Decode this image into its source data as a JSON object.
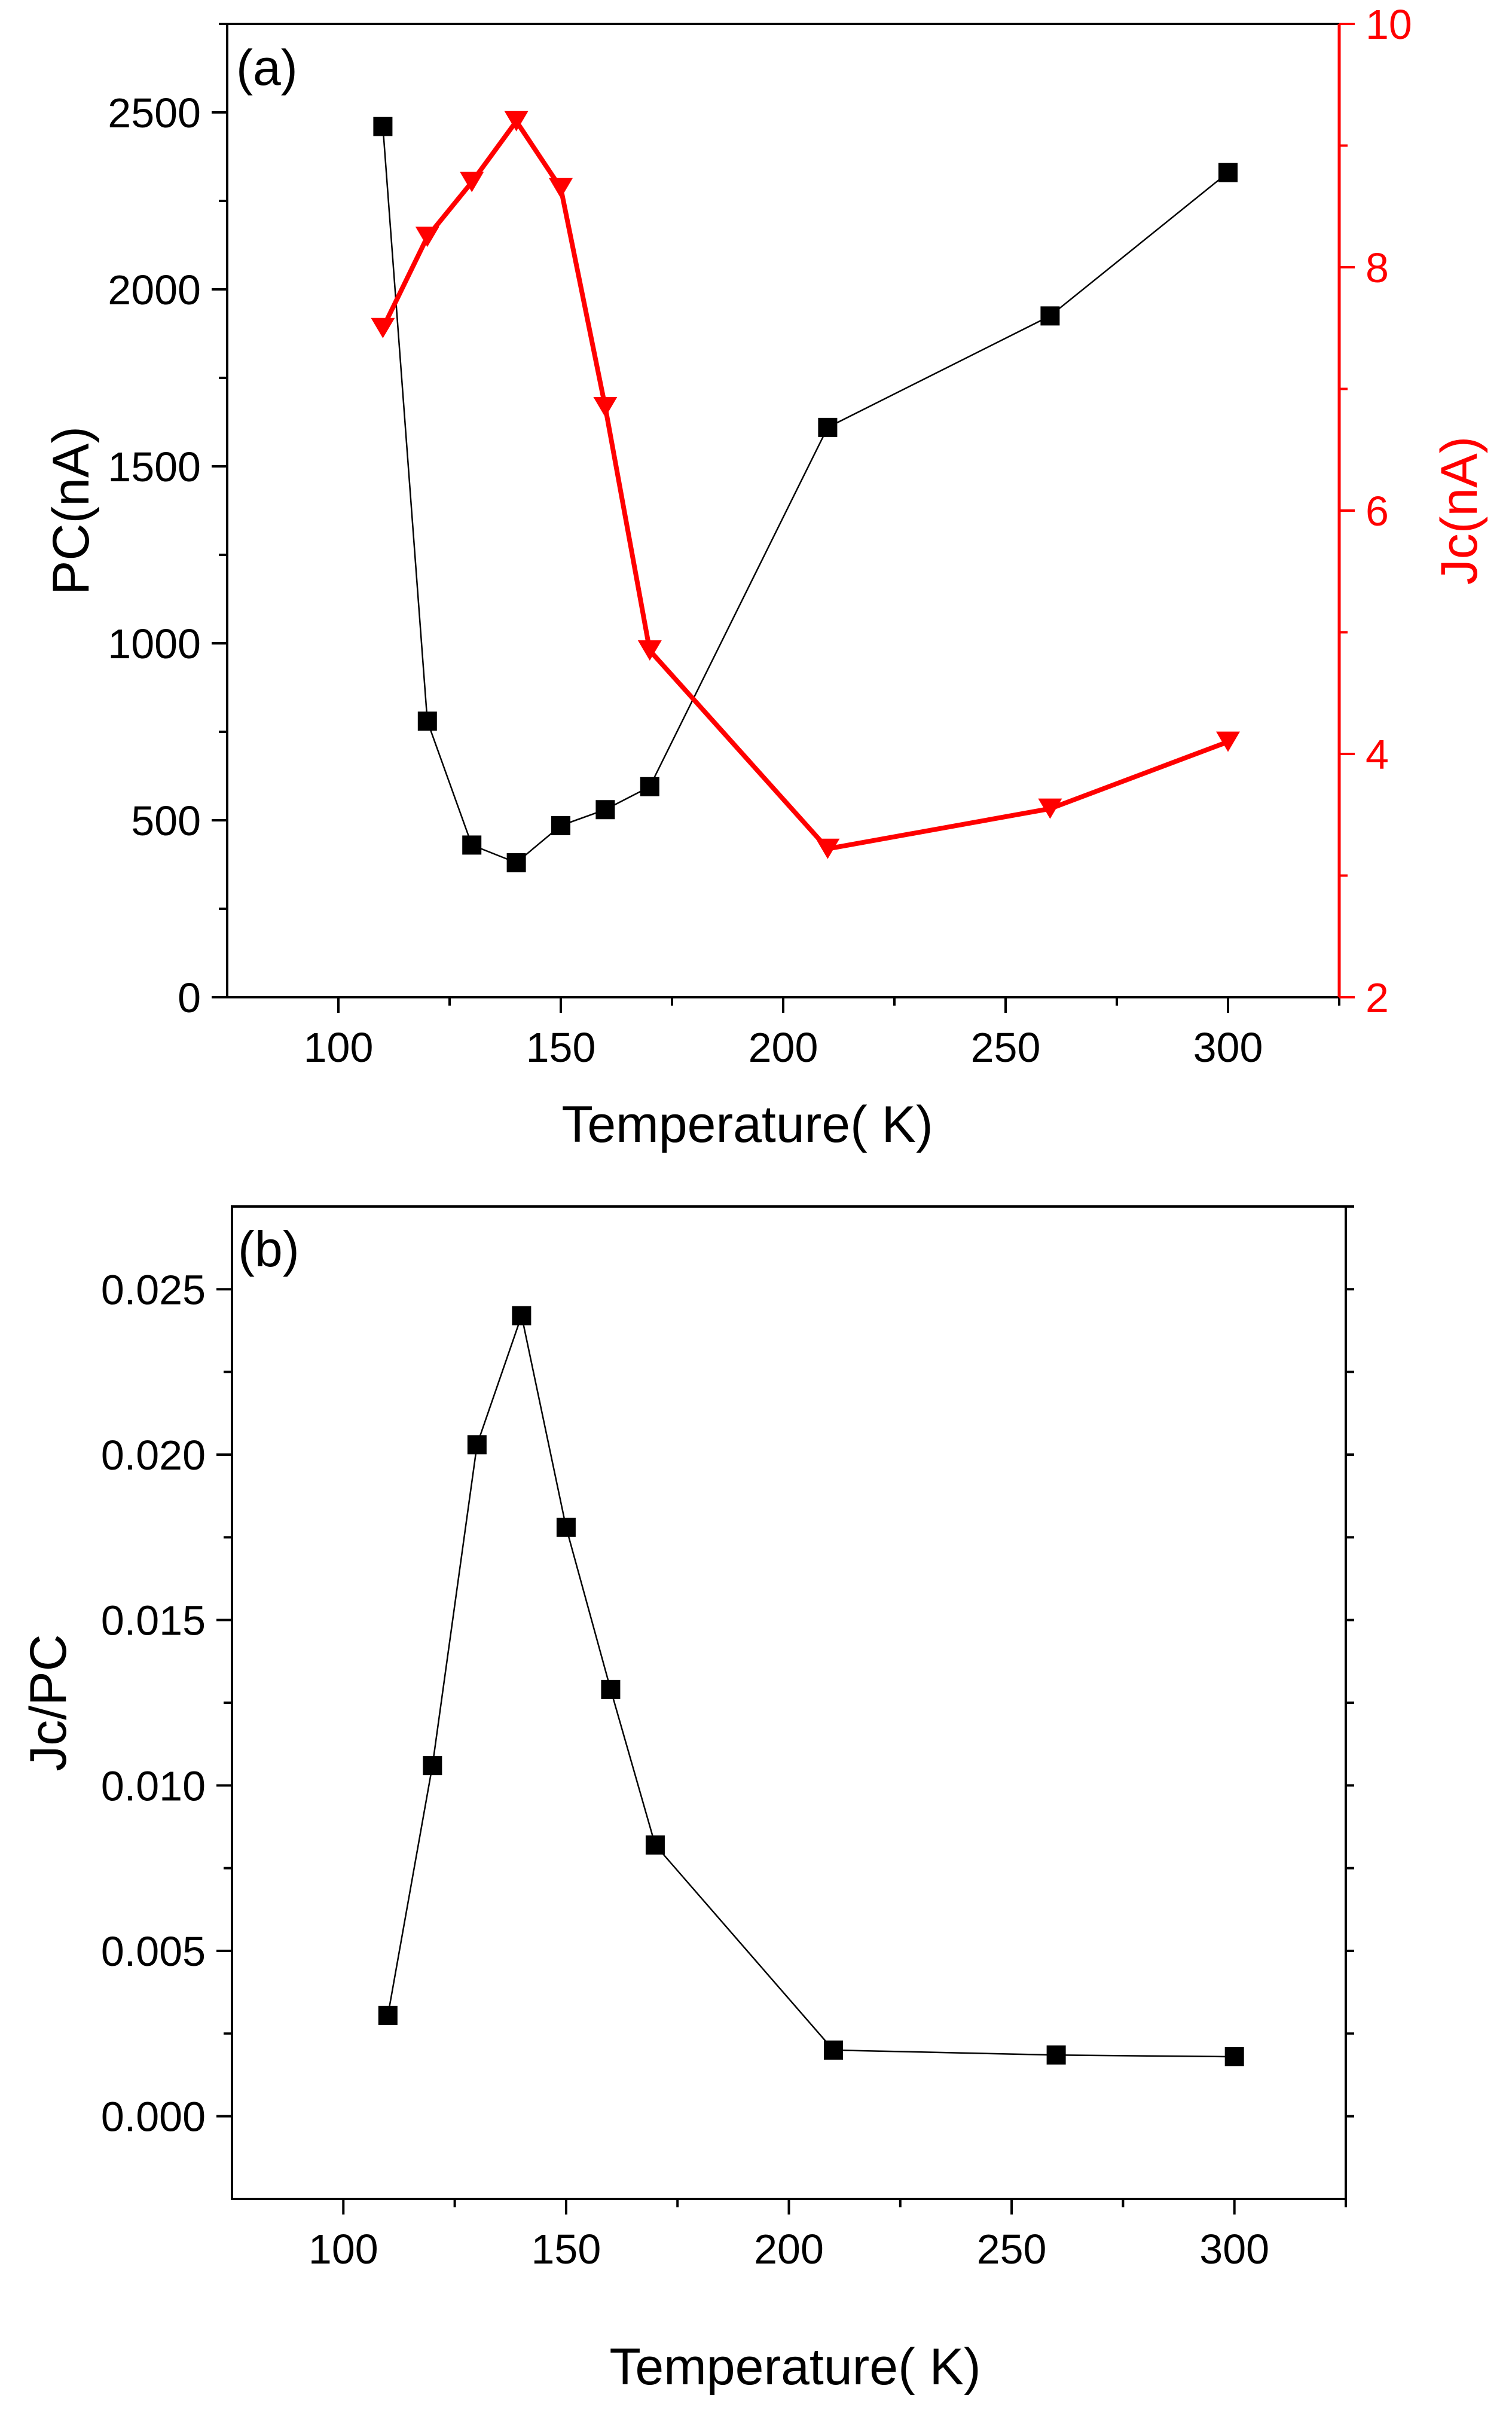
{
  "chart_data": [
    {
      "type": "line",
      "panel_label": "(a)",
      "xlabel": "Temperature( K)",
      "ylabel": "PC(nA)",
      "ylabel_right": "Jc(nA)",
      "xlim": [
        75,
        325
      ],
      "ylim": [
        0,
        2750
      ],
      "ylim_right": [
        2,
        10
      ],
      "x_ticks": [
        100,
        150,
        200,
        250,
        300
      ],
      "x_tick_labels": [
        "100",
        "150",
        "200",
        "250",
        "300"
      ],
      "y_ticks": [
        0,
        500,
        1000,
        1500,
        2000,
        2500
      ],
      "y_tick_labels": [
        "0",
        "500",
        "1000",
        "1500",
        "2000",
        "2500"
      ],
      "y_right_ticks": [
        2,
        4,
        6,
        8,
        10
      ],
      "y_right_tick_labels": [
        "2",
        "4",
        "6",
        "8",
        "10"
      ],
      "series": [
        {
          "name": "PC",
          "axis": "left",
          "color": "#000000",
          "marker": "square",
          "x": [
            110,
            120,
            130,
            140,
            150,
            160,
            170,
            210,
            260,
            300
          ],
          "values": [
            2460,
            780,
            430,
            380,
            485,
            530,
            595,
            1610,
            1925,
            2330
          ]
        },
        {
          "name": "Jc",
          "axis": "right",
          "color": "#ff0000",
          "marker": "triangle-down",
          "x": [
            110,
            120,
            130,
            140,
            150,
            160,
            170,
            210,
            260,
            300
          ],
          "values": [
            7.5,
            8.25,
            8.7,
            9.2,
            8.65,
            6.85,
            4.85,
            3.22,
            3.55,
            4.1
          ]
        }
      ]
    },
    {
      "type": "line",
      "panel_label": "(b)",
      "xlabel": "Temperature( K)",
      "ylabel": "Jc/PC",
      "xlim": [
        75,
        325
      ],
      "ylim": [
        -0.0025,
        0.0275
      ],
      "x_ticks": [
        100,
        150,
        200,
        250,
        300
      ],
      "x_tick_labels": [
        "100",
        "150",
        "200",
        "250",
        "300"
      ],
      "y_ticks": [
        0,
        0.005,
        0.01,
        0.015,
        0.02,
        0.025
      ],
      "y_tick_labels": [
        "0.000",
        "0.005",
        "0.010",
        "0.015",
        "0.020",
        "0.025"
      ],
      "series": [
        {
          "name": "Jc/PC",
          "axis": "left",
          "color": "#000000",
          "marker": "square",
          "x": [
            110,
            120,
            130,
            140,
            150,
            160,
            170,
            210,
            260,
            300
          ],
          "values": [
            0.00305,
            0.0106,
            0.0203,
            0.0242,
            0.0178,
            0.0129,
            0.0082,
            0.002,
            0.00185,
            0.0018
          ]
        }
      ]
    }
  ]
}
